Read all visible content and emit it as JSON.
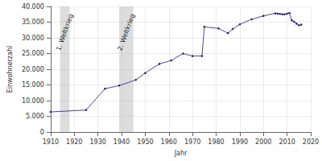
{
  "chart_data": {
    "type": "line",
    "x_label": "Jahr",
    "y_label": "Einwohnerzahl",
    "x": [
      1910,
      1925,
      1933,
      1939,
      1946,
      1950,
      1956,
      1961,
      1966,
      1970,
      1974,
      1975,
      1981,
      1985,
      1987,
      1990,
      1995,
      2000,
      2005,
      2006,
      2007,
      2008,
      2009,
      2010,
      2011,
      2012,
      2013,
      2014,
      2015,
      2016
    ],
    "values": [
      6400,
      7000,
      13800,
      14800,
      16600,
      18800,
      21700,
      22800,
      25000,
      24200,
      24200,
      33500,
      33000,
      31500,
      32800,
      34300,
      35900,
      37000,
      37800,
      37700,
      37600,
      37500,
      37500,
      37700,
      37900,
      35600,
      35100,
      34500,
      34000,
      34200
    ],
    "color": "#1a1a8c",
    "marker": "circle",
    "xlim": [
      1910,
      2020
    ],
    "xticks": [
      1910,
      1920,
      1930,
      1940,
      1950,
      1960,
      1970,
      1980,
      1990,
      2000,
      2010,
      2020
    ],
    "ylim": [
      0,
      40000
    ],
    "yticks": [
      {
        "value": 0,
        "label": "0"
      },
      {
        "value": 5000,
        "label": "5.000"
      },
      {
        "value": 10000,
        "label": "10.000"
      },
      {
        "value": 15000,
        "label": "15.000"
      },
      {
        "value": 20000,
        "label": "20.000"
      },
      {
        "value": 25000,
        "label": "25.000"
      },
      {
        "value": 30000,
        "label": "30.000"
      },
      {
        "value": 35000,
        "label": "35.000"
      },
      {
        "value": 40000,
        "label": "40.000"
      }
    ],
    "grid": true,
    "annotations": [
      {
        "label": "1. Weltkrieg",
        "x_start": 1914,
        "x_end": 1918
      },
      {
        "label": "2. Weltkrieg",
        "x_start": 1939,
        "x_end": 1945
      }
    ]
  }
}
